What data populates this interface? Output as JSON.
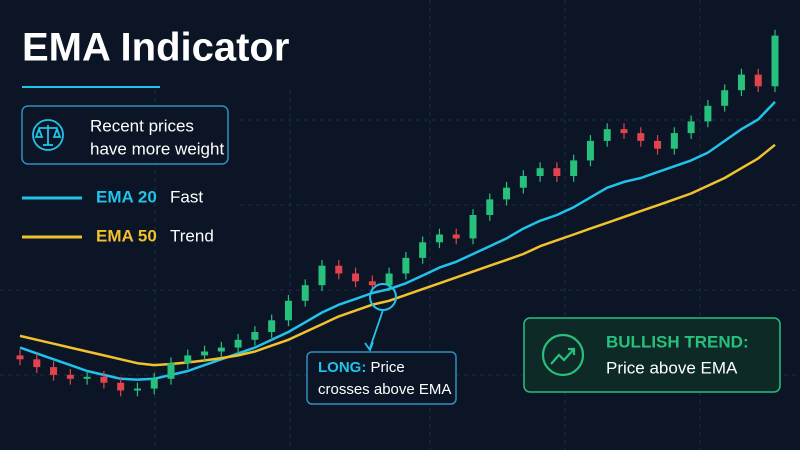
{
  "chart_data": {
    "type": "candlestick",
    "title": "EMA Indicator",
    "callout": [
      "Recent prices",
      "have more weight"
    ],
    "ylim": [
      0,
      100
    ],
    "up_color": "#27c07d",
    "down_color": "#e2434d",
    "open": [
      14,
      13,
      11,
      9,
      8,
      8.5,
      7,
      5,
      5.5,
      8,
      12,
      14,
      15,
      16,
      18,
      20,
      23,
      28,
      32,
      37,
      35,
      33,
      32,
      35,
      39,
      43,
      45,
      44,
      50,
      54,
      57,
      60,
      62,
      60,
      64,
      69,
      72,
      71,
      69,
      67,
      71,
      74,
      78,
      82,
      86,
      83
    ],
    "high": [
      15.5,
      14.5,
      12.5,
      10.5,
      10,
      10,
      8.5,
      7,
      9.5,
      13.5,
      15.5,
      16.5,
      17.5,
      19.5,
      21.5,
      24.5,
      29.5,
      33.5,
      38.5,
      38.5,
      36.5,
      34.5,
      36.5,
      40.5,
      44.5,
      46.5,
      46.5,
      51.5,
      55.5,
      58.5,
      61.5,
      63.5,
      63.5,
      65.5,
      70.5,
      73.5,
      73.5,
      72.5,
      70.5,
      72.5,
      75.5,
      79.5,
      83.5,
      87.5,
      87.5,
      97.5
    ],
    "low": [
      11.5,
      9.5,
      7.5,
      6.5,
      6.5,
      5.5,
      3.5,
      3.5,
      4,
      6.5,
      10.5,
      12.5,
      13.5,
      14.5,
      16.5,
      18.5,
      21.5,
      26.5,
      30.5,
      33.5,
      31.5,
      30.5,
      30.5,
      33.5,
      37.5,
      41.5,
      42.5,
      42.5,
      48.5,
      52.5,
      55.5,
      58.5,
      58.5,
      58.5,
      62.5,
      67.5,
      69.5,
      67.5,
      65.5,
      65.5,
      69.5,
      72.5,
      76.5,
      80.5,
      81.5,
      81.5
    ],
    "close": [
      13,
      11,
      9,
      8,
      8.5,
      7,
      5,
      5.5,
      8,
      12,
      14,
      15,
      16,
      18,
      20,
      23,
      28,
      32,
      37,
      35,
      33,
      32,
      35,
      39,
      43,
      45,
      44,
      50,
      54,
      57,
      60,
      62,
      60,
      64,
      69,
      72,
      71,
      69,
      67,
      71,
      74,
      78,
      82,
      86,
      83,
      96
    ],
    "series": [
      {
        "name": "EMA 20",
        "label": "Fast",
        "color": "#22c3ea",
        "values": [
          16,
          14.5,
          13,
          11.5,
          10,
          9,
          8,
          7.8,
          8,
          9,
          10,
          11.5,
          13,
          14.5,
          16,
          18,
          20,
          22.5,
          25,
          27,
          28.5,
          30,
          31,
          32.5,
          34.5,
          36.5,
          38,
          40,
          42,
          44,
          46.5,
          48.5,
          50,
          52,
          54.5,
          57,
          58.5,
          59.5,
          61,
          62.5,
          64,
          66,
          69,
          72,
          74.5,
          79
        ]
      },
      {
        "name": "EMA 50",
        "label": "Trend",
        "color": "#f2c12e",
        "values": [
          19,
          18,
          17,
          16,
          15,
          14,
          13,
          12,
          11.5,
          11.8,
          12.2,
          12.7,
          13.3,
          14,
          15,
          16.5,
          18,
          20,
          22,
          24,
          25.5,
          27,
          28,
          29.5,
          31,
          32.5,
          34,
          35.5,
          37,
          38.5,
          40,
          42,
          43.5,
          45,
          46.5,
          48,
          49.5,
          51,
          52.5,
          54,
          55.5,
          57.5,
          59.5,
          62,
          64.5,
          68
        ]
      }
    ],
    "annotations": [
      {
        "head": "LONG:",
        "text": [
          "Price",
          "crosses above EMA"
        ]
      },
      {
        "head": "BULLISH TREND:",
        "text": [
          "Price above EMA"
        ]
      }
    ]
  }
}
